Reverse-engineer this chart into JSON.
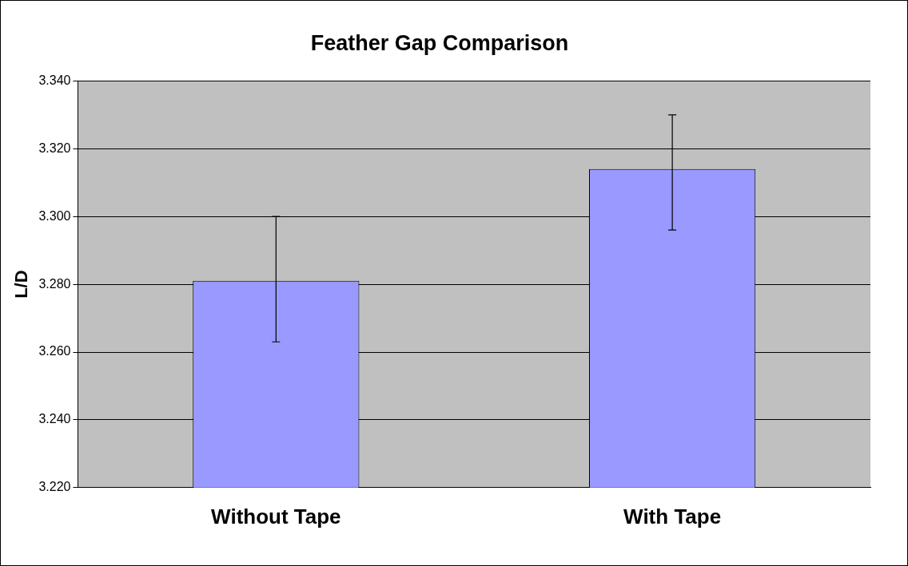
{
  "chart_data": {
    "type": "bar",
    "title": "Feather Gap Comparison",
    "ylabel": "L/D",
    "categories": [
      "Without Tape",
      "With Tape"
    ],
    "values": [
      3.281,
      3.314
    ],
    "errors": [
      [
        3.263,
        3.3
      ],
      [
        3.296,
        3.33
      ]
    ],
    "color": "#9999ff",
    "ylim": [
      3.22,
      3.34
    ],
    "yticks": [
      {
        "value": 3.22,
        "label": "3.220"
      },
      {
        "value": 3.24,
        "label": "3.240"
      },
      {
        "value": 3.26,
        "label": "3.260"
      },
      {
        "value": 3.28,
        "label": "3.280"
      },
      {
        "value": 3.3,
        "label": "3.300"
      },
      {
        "value": 3.32,
        "label": "3.320"
      },
      {
        "value": 3.34,
        "label": "3.340"
      }
    ],
    "grid": "y",
    "legend": false
  }
}
